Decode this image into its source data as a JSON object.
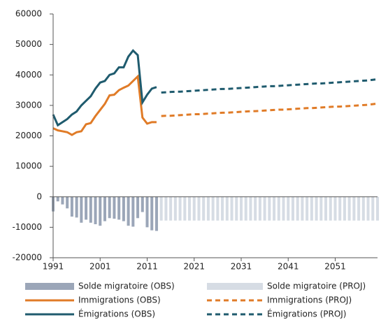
{
  "chart_data": {
    "type": "bar-line",
    "xlim": [
      1991,
      2060
    ],
    "xticks": [
      1991,
      2001,
      2011,
      2021,
      2031,
      2041,
      2051
    ],
    "ylim": [
      -20000,
      60000
    ],
    "yticks": [
      -20000,
      -10000,
      0,
      10000,
      20000,
      30000,
      40000,
      50000,
      60000
    ],
    "series": [
      {
        "name": "Solde migratoire (OBS)",
        "type": "bar",
        "color": "#9ba6b8",
        "x": [
          1991,
          1992,
          1993,
          1994,
          1995,
          1996,
          1997,
          1998,
          1999,
          2000,
          2001,
          2002,
          2003,
          2004,
          2005,
          2006,
          2007,
          2008,
          2009,
          2010,
          2011,
          2012,
          2013
        ],
        "values": [
          -4800,
          -1500,
          -2500,
          -3800,
          -6500,
          -6800,
          -8500,
          -7500,
          -8500,
          -9000,
          -9500,
          -8000,
          -7000,
          -7200,
          -7500,
          -8000,
          -9500,
          -9800,
          -7000,
          -5000,
          -10000,
          -11000,
          -11200
        ]
      },
      {
        "name": "Solde migratoire (PROJ)",
        "type": "bar",
        "color": "#d6dce4",
        "x": [
          2014,
          2015,
          2016,
          2017,
          2018,
          2019,
          2020,
          2021,
          2022,
          2023,
          2024,
          2025,
          2026,
          2027,
          2028,
          2029,
          2030,
          2031,
          2032,
          2033,
          2034,
          2035,
          2036,
          2037,
          2038,
          2039,
          2040,
          2041,
          2042,
          2043,
          2044,
          2045,
          2046,
          2047,
          2048,
          2049,
          2050,
          2051,
          2052,
          2053,
          2054,
          2055,
          2056,
          2057,
          2058,
          2059,
          2060
        ],
        "values": [
          -7800,
          -7800,
          -7800,
          -7800,
          -7800,
          -7800,
          -7800,
          -7800,
          -7800,
          -7800,
          -7800,
          -7800,
          -7800,
          -7800,
          -7800,
          -7800,
          -7800,
          -7800,
          -7800,
          -7800,
          -7800,
          -7800,
          -7800,
          -7800,
          -7800,
          -7800,
          -7800,
          -7800,
          -7800,
          -7800,
          -7800,
          -7800,
          -7800,
          -7800,
          -7800,
          -7800,
          -7800,
          -7800,
          -7800,
          -7800,
          -7800,
          -7800,
          -7800,
          -7800,
          -7800,
          -7800,
          -7800
        ]
      },
      {
        "name": "Immigrations (OBS)",
        "type": "line",
        "color": "#e07b27",
        "x": [
          1991,
          1992,
          1993,
          1994,
          1995,
          1996,
          1997,
          1998,
          1999,
          2000,
          2001,
          2002,
          2003,
          2004,
          2005,
          2006,
          2007,
          2008,
          2009,
          2010,
          2011,
          2012,
          2013
        ],
        "values": [
          22500,
          21800,
          21500,
          21200,
          20300,
          21200,
          21500,
          23800,
          24200,
          26500,
          28500,
          30500,
          33300,
          33500,
          35000,
          35800,
          36500,
          38000,
          39500,
          26000,
          24000,
          24500,
          24500
        ]
      },
      {
        "name": "Immigrations (PROJ)",
        "type": "line",
        "dashed": true,
        "color": "#e07b27",
        "x": [
          2014,
          2015,
          2016,
          2017,
          2018,
          2019,
          2020,
          2021,
          2022,
          2023,
          2024,
          2025,
          2026,
          2027,
          2028,
          2029,
          2030,
          2031,
          2032,
          2033,
          2034,
          2035,
          2036,
          2037,
          2038,
          2039,
          2040,
          2041,
          2042,
          2043,
          2044,
          2045,
          2046,
          2047,
          2048,
          2049,
          2050,
          2051,
          2052,
          2053,
          2054,
          2055,
          2056,
          2057,
          2058,
          2059,
          2060
        ],
        "values": [
          26500,
          26600,
          26600,
          26700,
          26800,
          26900,
          27000,
          27100,
          27100,
          27200,
          27300,
          27400,
          27500,
          27600,
          27600,
          27700,
          27800,
          27900,
          28000,
          28100,
          28100,
          28200,
          28300,
          28400,
          28500,
          28600,
          28600,
          28700,
          28800,
          28900,
          29000,
          29100,
          29100,
          29200,
          29300,
          29400,
          29500,
          29600,
          29600,
          29700,
          29800,
          29900,
          30000,
          30100,
          30200,
          30400,
          30600
        ]
      },
      {
        "name": "Émigrations (OBS)",
        "type": "line",
        "color": "#1f5b6e",
        "x": [
          1991,
          1992,
          1993,
          1994,
          1995,
          1996,
          1997,
          1998,
          1999,
          2000,
          2001,
          2002,
          2003,
          2004,
          2005,
          2006,
          2007,
          2008,
          2009,
          2010,
          2011,
          2012,
          2013
        ],
        "values": [
          27000,
          23500,
          24500,
          25500,
          27000,
          28000,
          30000,
          31500,
          33000,
          35500,
          37500,
          38000,
          40000,
          40500,
          42500,
          42500,
          46000,
          48000,
          46500,
          31000,
          33500,
          35500,
          36000
        ]
      },
      {
        "name": "Émigrations (PROJ)",
        "type": "line",
        "dashed": true,
        "color": "#1f5b6e",
        "x": [
          2014,
          2015,
          2016,
          2017,
          2018,
          2019,
          2020,
          2021,
          2022,
          2023,
          2024,
          2025,
          2026,
          2027,
          2028,
          2029,
          2030,
          2031,
          2032,
          2033,
          2034,
          2035,
          2036,
          2037,
          2038,
          2039,
          2040,
          2041,
          2042,
          2043,
          2044,
          2045,
          2046,
          2047,
          2048,
          2049,
          2050,
          2051,
          2052,
          2053,
          2054,
          2055,
          2056,
          2057,
          2058,
          2059,
          2060
        ],
        "values": [
          34200,
          34300,
          34400,
          34500,
          34500,
          34600,
          34700,
          34800,
          34900,
          35000,
          35100,
          35200,
          35300,
          35400,
          35400,
          35500,
          35600,
          35700,
          35800,
          35900,
          36000,
          36100,
          36200,
          36300,
          36300,
          36400,
          36500,
          36600,
          36700,
          36800,
          36900,
          37000,
          37100,
          37200,
          37200,
          37300,
          37400,
          37500,
          37600,
          37700,
          37800,
          37900,
          38000,
          38100,
          38200,
          38400,
          38600
        ]
      }
    ]
  }
}
